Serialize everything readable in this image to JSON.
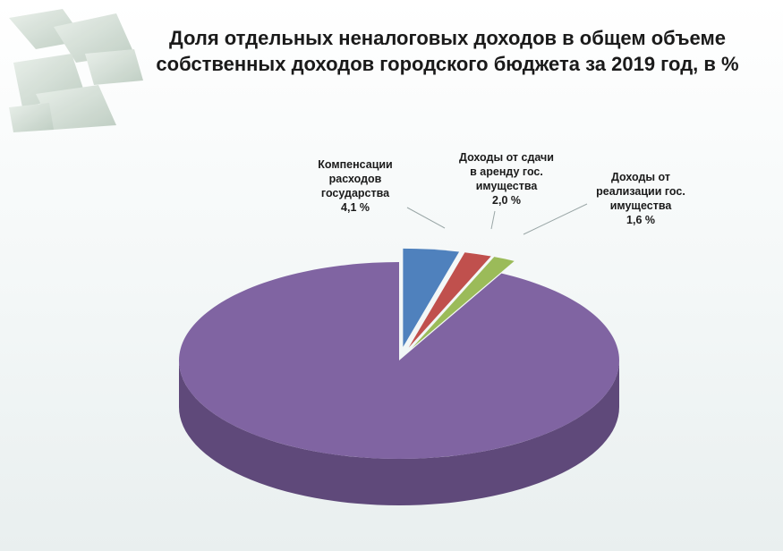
{
  "chart_data": {
    "type": "pie",
    "title": "Доля отдельных неналоговых доходов в общем объеме собственных доходов городского бюджета за 2019 год, в %",
    "slices": [
      {
        "label_lines": [
          "Компенсации",
          "расходов",
          "государства"
        ],
        "value": 4.1,
        "value_text": "4,1 %",
        "color": "#4f81bd",
        "side": "#3a6494",
        "exploded": true
      },
      {
        "label_lines": [
          "Доходы от сдачи",
          "в аренду гос.",
          "имущества"
        ],
        "value": 2.0,
        "value_text": "2,0 %",
        "color": "#c0504d",
        "side": "#953735",
        "exploded": true
      },
      {
        "label_lines": [
          "Доходы от",
          "реализации гос.",
          "имущества"
        ],
        "value": 1.6,
        "value_text": "1,6 %",
        "color": "#9bbb59",
        "side": "#76923c",
        "exploded": true
      },
      {
        "label_lines": [],
        "value": 92.3,
        "value_text": "",
        "color": "#8064a2",
        "side": "#5f497a",
        "exploded": false
      }
    ],
    "legend": "none"
  }
}
